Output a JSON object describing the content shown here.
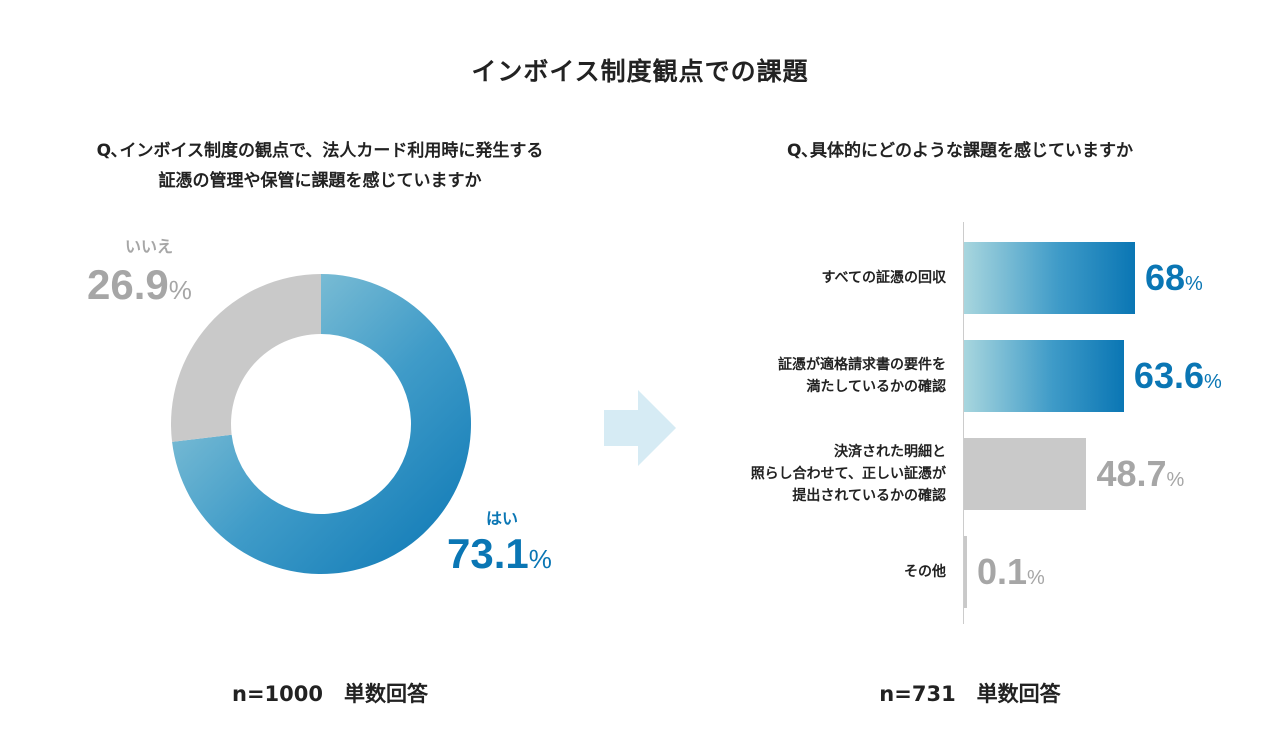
{
  "title": "インボイス制度観点での課題",
  "left_panel": {
    "question_line1": "Q､インボイス制度の観点で、法人カード利用時に発生する",
    "question_line2": "証憑の管理や保管に課題を感じていますか",
    "sample": "n=1000　単数回答"
  },
  "right_panel": {
    "question": "Q､具体的にどのような課題を感じていますか",
    "sample": "n=731　単数回答"
  },
  "chart_data": [
    {
      "type": "pie",
      "style": "donut",
      "slices": [
        {
          "label": "はい",
          "value": 73.1,
          "display": "73.1",
          "unit": "%",
          "color": "#0a76b4"
        },
        {
          "label": "いいえ",
          "value": 26.9,
          "display": "26.9",
          "unit": "%",
          "color": "#c9c9c9"
        }
      ]
    },
    {
      "type": "bar",
      "orientation": "horizontal",
      "xlim": [
        0,
        100
      ],
      "categories": [
        "すべての証憑の回収",
        "証憑が適格請求書の要件を\n満たしているかの確認",
        "決済された明細と\n照らし合わせて、正しい証憑が\n提出されているかの確認",
        "その他"
      ],
      "values": [
        68,
        63.6,
        48.7,
        0.1
      ],
      "labels": [
        "68",
        "63.6",
        "48.7",
        "0.1"
      ],
      "unit": "%",
      "highlight_color": "#0a76b4",
      "muted_color": "#c9c9c9"
    }
  ]
}
